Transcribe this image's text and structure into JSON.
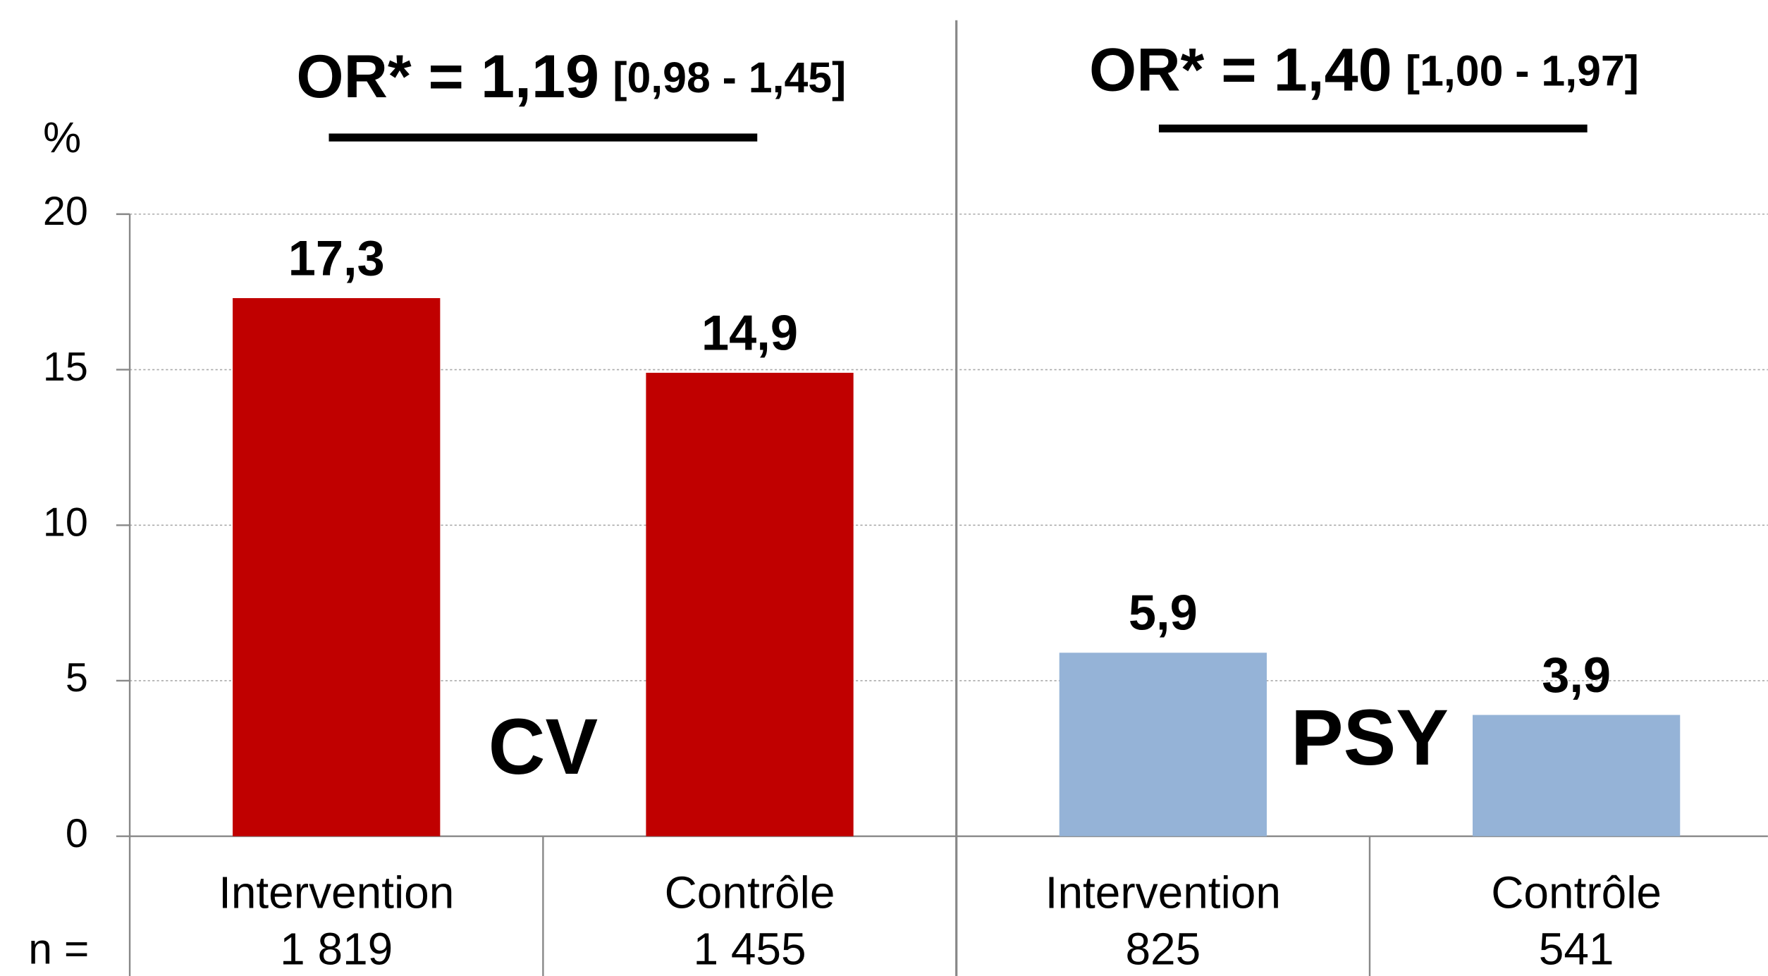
{
  "chart_data": {
    "type": "bar",
    "y_label": "%",
    "ylim": [
      0,
      20
    ],
    "yticks": [
      0,
      5,
      10,
      15,
      20
    ],
    "grid": true,
    "categories": [
      "Intervention",
      "Contrôle",
      "Intervention",
      "Contrôle"
    ],
    "n_prefix": "n =",
    "sample_size_labels": [
      "1 819",
      "1 455",
      "825",
      "541"
    ],
    "series": [
      {
        "name": "CV",
        "color": "#c00000",
        "label_color": "#c00000",
        "odds_ratio": "OR* = 1,19",
        "ci": "[0,98 - 1,45]",
        "values": [
          17.3,
          14.9,
          null,
          null
        ],
        "value_labels": [
          "17,3",
          "14,9",
          null,
          null
        ]
      },
      {
        "name": "PSY",
        "color": "#95b3d7",
        "label_color": "#0070c0",
        "odds_ratio": "OR* = 1,40",
        "ci": "[1,00 - 1,97]",
        "values": [
          null,
          null,
          5.9,
          3.9
        ],
        "value_labels": [
          null,
          null,
          "5,9",
          "3,9"
        ]
      }
    ]
  }
}
